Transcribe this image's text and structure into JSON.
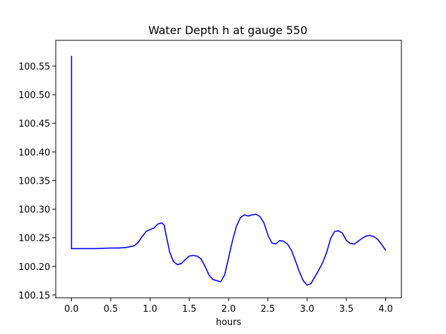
{
  "chart_data": {
    "type": "line",
    "title": "Water Depth h at gauge 550",
    "xlabel": "hours",
    "ylabel": "",
    "xlim": [
      -0.2,
      4.2
    ],
    "ylim": [
      100.145,
      100.595
    ],
    "x_ticks": [
      0.0,
      0.5,
      1.0,
      1.5,
      2.0,
      2.5,
      3.0,
      3.5,
      4.0
    ],
    "x_tick_labels": [
      "0.0",
      "0.5",
      "1.0",
      "1.5",
      "2.0",
      "2.5",
      "3.0",
      "3.5",
      "4.0"
    ],
    "y_ticks": [
      100.15,
      100.2,
      100.25,
      100.3,
      100.35,
      100.4,
      100.45,
      100.5,
      100.55
    ],
    "y_tick_labels": [
      "100.15",
      "100.20",
      "100.25",
      "100.30",
      "100.35",
      "100.40",
      "100.45",
      "100.50",
      "100.55"
    ],
    "grid": false,
    "line_color": "#0000ff",
    "series": [
      {
        "x": [
          0.0,
          0.0,
          0.1,
          0.3,
          0.5,
          0.6,
          0.7,
          0.8,
          0.85,
          0.9,
          0.95,
          1.0,
          1.05,
          1.1,
          1.15,
          1.18,
          1.2,
          1.25,
          1.3,
          1.35,
          1.4,
          1.45,
          1.5,
          1.55,
          1.6,
          1.65,
          1.7,
          1.75,
          1.8,
          1.85,
          1.9,
          1.95,
          2.0,
          2.05,
          2.1,
          2.15,
          2.2,
          2.25,
          2.3,
          2.35,
          2.4,
          2.45,
          2.5,
          2.55,
          2.6,
          2.65,
          2.7,
          2.75,
          2.8,
          2.85,
          2.9,
          2.95,
          3.0,
          3.05,
          3.1,
          3.15,
          3.2,
          3.25,
          3.3,
          3.35,
          3.4,
          3.45,
          3.5,
          3.55,
          3.6,
          3.65,
          3.7,
          3.75,
          3.8,
          3.85,
          3.9,
          3.95,
          4.0
        ],
        "y": [
          100.568,
          100.231,
          100.231,
          100.231,
          100.232,
          100.232,
          100.233,
          100.236,
          100.242,
          100.252,
          100.261,
          100.264,
          100.267,
          100.274,
          100.276,
          100.272,
          100.258,
          100.225,
          100.208,
          100.203,
          100.205,
          100.212,
          100.218,
          100.219,
          100.218,
          100.213,
          100.2,
          100.185,
          100.177,
          100.175,
          100.173,
          100.185,
          100.215,
          100.245,
          100.27,
          100.285,
          100.29,
          100.288,
          100.29,
          100.291,
          100.287,
          100.276,
          100.255,
          100.241,
          100.239,
          100.245,
          100.244,
          100.239,
          100.228,
          100.21,
          100.191,
          100.175,
          100.167,
          100.17,
          100.182,
          100.194,
          100.207,
          100.225,
          100.249,
          100.261,
          100.262,
          100.258,
          100.245,
          100.24,
          100.239,
          100.244,
          100.249,
          100.253,
          100.254,
          100.252,
          100.247,
          100.238,
          100.228
        ]
      }
    ]
  }
}
